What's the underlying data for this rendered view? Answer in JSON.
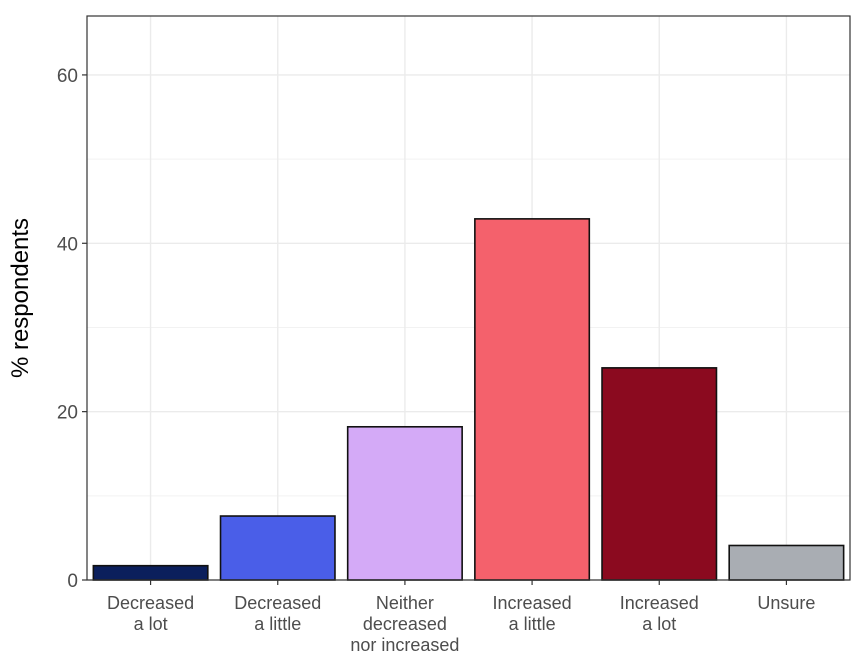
{
  "chart_data": {
    "type": "bar",
    "title": "",
    "xlabel": "",
    "ylabel": "% respondents",
    "ylim": [
      0,
      67
    ],
    "yticks": [
      0,
      20,
      40,
      60
    ],
    "grid": true,
    "legend": "none",
    "categories": [
      [
        "Decreased",
        "a lot"
      ],
      [
        "Decreased",
        "a little"
      ],
      [
        "Neither",
        "decreased",
        "nor increased"
      ],
      [
        "Increased",
        "a little"
      ],
      [
        "Increased",
        "a lot"
      ],
      [
        "Unsure"
      ]
    ],
    "values": [
      1.7,
      7.6,
      18.2,
      42.9,
      25.2,
      4.1
    ],
    "colors": [
      "#0b1f5c",
      "#4a5ee8",
      "#d4aaf7",
      "#f4616c",
      "#8b0a1f",
      "#a9adb3"
    ]
  }
}
